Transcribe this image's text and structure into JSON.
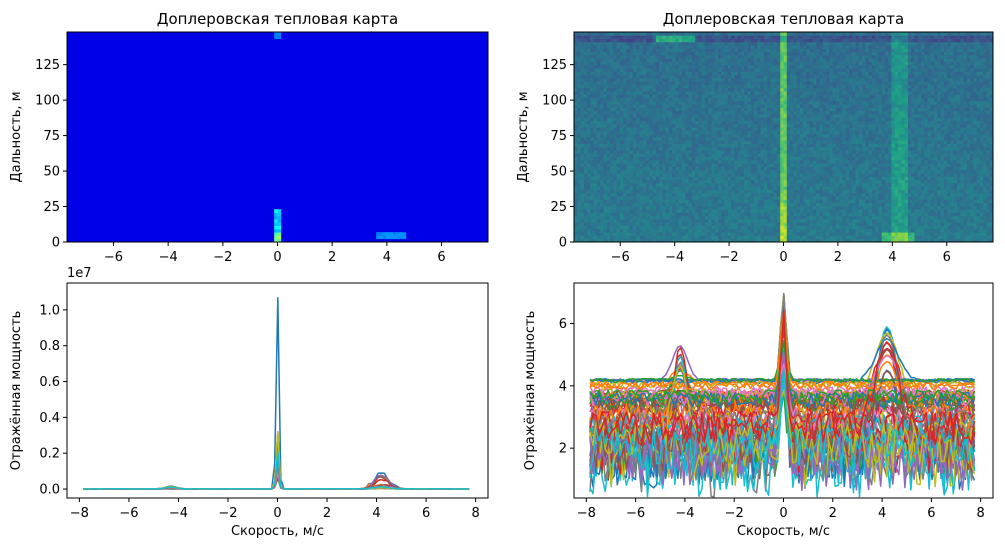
{
  "figure": {
    "panels": [
      {
        "title": "Доплеровская тепловая карта",
        "xlabel": "",
        "ylabel": "Дальность, м"
      },
      {
        "title": "Доплеровская тепловая карта",
        "xlabel": "",
        "ylabel": "Дальность, м"
      },
      {
        "title": "",
        "xlabel": "Скорость, м/с",
        "ylabel": "Отражённая мощность",
        "offset_text": "1e7"
      },
      {
        "title": "",
        "xlabel": "Скорость, м/с",
        "ylabel": "Отражённая мощность"
      }
    ]
  },
  "chart_data": [
    {
      "type": "heatmap",
      "title": "Доплеровская тепловая карта",
      "colormap": "jet",
      "xlabel": "",
      "ylabel": "Дальность, м",
      "xlim": [
        -7.7,
        7.7
      ],
      "ylim": [
        0,
        148
      ],
      "xticks": [
        -6,
        -4,
        -2,
        0,
        2,
        4,
        6
      ],
      "yticks": [
        0,
        25,
        50,
        75,
        100,
        125
      ],
      "features": [
        {
          "velocity": 0,
          "range": [
            0,
            22
          ],
          "intensity": "high"
        },
        {
          "velocity": 4.2,
          "range": [
            3,
            6
          ],
          "intensity": "low"
        }
      ]
    },
    {
      "type": "heatmap",
      "title": "Доплеровская тепловая карта",
      "colormap": "viridis",
      "scale": "log",
      "xlabel": "",
      "ylabel": "Дальность, м",
      "xlim": [
        -7.7,
        7.7
      ],
      "ylim": [
        0,
        148
      ],
      "xticks": [
        -6,
        -4,
        -2,
        0,
        2,
        4,
        6
      ],
      "yticks": [
        0,
        25,
        50,
        75,
        100,
        125
      ],
      "features": [
        {
          "velocity": 0,
          "range": [
            0,
            148
          ],
          "intensity": "high"
        },
        {
          "velocity": 4.2,
          "range": [
            0,
            148
          ],
          "intensity": "medium"
        },
        {
          "velocity": -4,
          "range": [
            140,
            145
          ],
          "intensity": "medium"
        }
      ]
    },
    {
      "type": "line",
      "title": "",
      "xlabel": "Скорость, м/с",
      "ylabel": "Отражённая мощность",
      "scale_note": "1e7",
      "xlim": [
        -8.5,
        8.5
      ],
      "ylim": [
        -0.05,
        1.15
      ],
      "xticks": [
        -8,
        -6,
        -4,
        -2,
        0,
        2,
        4,
        6,
        8
      ],
      "yticks": [
        0.0,
        0.2,
        0.4,
        0.6,
        0.8,
        1.0
      ],
      "peaks": [
        {
          "x": 0,
          "y": 1.09
        },
        {
          "x": 4.2,
          "y": 0.1
        },
        {
          "x": -4.3,
          "y": 0.015
        }
      ],
      "baseline": 0.0
    },
    {
      "type": "line",
      "title": "",
      "xlabel": "Скорость, м/с",
      "ylabel": "Отражённая мощность",
      "xlim": [
        -8.5,
        8.5
      ],
      "ylim": [
        0.4,
        7.3
      ],
      "xticks": [
        -8,
        -6,
        -4,
        -2,
        0,
        2,
        4,
        6,
        8
      ],
      "yticks": [
        2,
        4,
        6
      ],
      "peaks": [
        {
          "x": 0,
          "y": 7.0
        },
        {
          "x": 4.2,
          "y": 6.0
        },
        {
          "x": -4.2,
          "y": 5.3
        }
      ],
      "baseline_range": [
        2.0,
        4.3
      ]
    }
  ]
}
